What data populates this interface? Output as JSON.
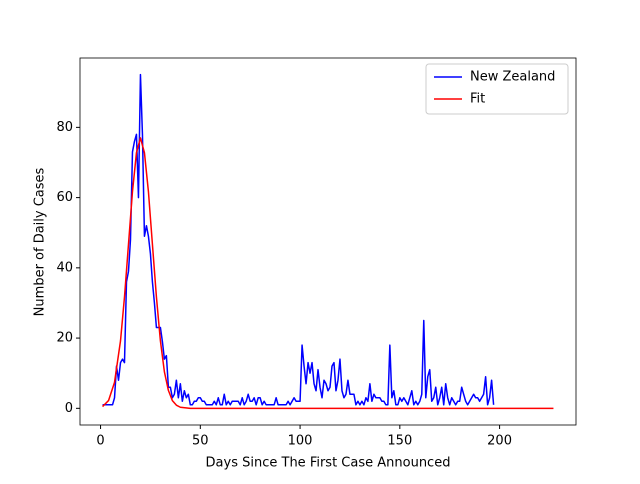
{
  "chart_data": {
    "type": "line",
    "xlabel": "Days Since The First Case Announced",
    "ylabel": "Number of Daily Cases",
    "xlim": [
      -10.3,
      238.3
    ],
    "ylim": [
      -4.75,
      99.75
    ],
    "xticks": [
      0,
      50,
      100,
      150,
      200
    ],
    "yticks": [
      0,
      20,
      40,
      60,
      80
    ],
    "grid": false,
    "legend": "upper right",
    "series": [
      {
        "name": "New Zealand",
        "color": "#0000ff",
        "x": [
          1,
          2,
          3,
          4,
          5,
          6,
          7,
          8,
          9,
          10,
          11,
          12,
          13,
          14,
          15,
          16,
          17,
          18,
          19,
          20,
          21,
          22,
          23,
          24,
          25,
          26,
          27,
          28,
          29,
          30,
          31,
          32,
          33,
          34,
          35,
          36,
          37,
          38,
          39,
          40,
          41,
          42,
          43,
          44,
          45,
          46,
          47,
          48,
          49,
          50,
          51,
          52,
          53,
          54,
          55,
          56,
          57,
          58,
          59,
          60,
          61,
          62,
          63,
          64,
          65,
          66,
          67,
          68,
          69,
          70,
          71,
          72,
          73,
          74,
          75,
          76,
          77,
          78,
          79,
          80,
          81,
          82,
          83,
          84,
          85,
          86,
          87,
          88,
          89,
          90,
          91,
          92,
          93,
          94,
          95,
          96,
          97,
          98,
          99,
          100,
          101,
          102,
          103,
          104,
          105,
          106,
          107,
          108,
          109,
          110,
          111,
          112,
          113,
          114,
          115,
          116,
          117,
          118,
          119,
          120,
          121,
          122,
          123,
          124,
          125,
          126,
          127,
          128,
          129,
          130,
          131,
          132,
          133,
          134,
          135,
          136,
          137,
          138,
          139,
          140,
          141,
          142,
          143,
          144,
          145,
          146,
          147,
          148,
          149,
          150,
          151,
          152,
          153,
          154,
          155,
          156,
          157,
          158,
          159,
          160,
          161,
          162,
          163,
          164,
          165,
          166,
          167,
          168,
          169,
          170,
          171,
          172,
          173,
          174,
          175,
          176,
          177,
          178,
          179,
          180,
          181,
          182,
          183,
          184,
          185,
          186,
          187,
          188,
          189,
          190,
          191,
          192,
          193,
          194,
          195,
          196,
          197
        ],
        "values": [
          1,
          1,
          1,
          1,
          1,
          1,
          3,
          12,
          8,
          13,
          14,
          13,
          36,
          39,
          48,
          73,
          76,
          78,
          60,
          95,
          78,
          49,
          52,
          49,
          44,
          36,
          30,
          23,
          23,
          23,
          19,
          14,
          15,
          6,
          6,
          3,
          4,
          8,
          3,
          7,
          2,
          5,
          3,
          4,
          1,
          1,
          2,
          2,
          3,
          3,
          2,
          2,
          1,
          1,
          1,
          1,
          2,
          1,
          3,
          1,
          1,
          4,
          1,
          2,
          1,
          2,
          2,
          2,
          2,
          1,
          3,
          1,
          2,
          4,
          2,
          2,
          3,
          1,
          3,
          3,
          1,
          2,
          1,
          1,
          1,
          1,
          1,
          3,
          1,
          1,
          1,
          1,
          1,
          2,
          1,
          2,
          3,
          2,
          2,
          2,
          18,
          12,
          7,
          13,
          10,
          13,
          7,
          5,
          11,
          6,
          3,
          8,
          7,
          5,
          6,
          12,
          13,
          5,
          8,
          14,
          5,
          3,
          4,
          8,
          4,
          4,
          4,
          1,
          2,
          1,
          2,
          1,
          3,
          2,
          7,
          2,
          4,
          3,
          3,
          3,
          2,
          2,
          1,
          1,
          18,
          3,
          5,
          1,
          1,
          3,
          2,
          3,
          2,
          1,
          3,
          5,
          1,
          2,
          1,
          2,
          4,
          25,
          3,
          9,
          11,
          2,
          3,
          6,
          1,
          3,
          6,
          1,
          7,
          3,
          1,
          3,
          2,
          1,
          2,
          2,
          6,
          4,
          2,
          1,
          2,
          3,
          4,
          3,
          3,
          2,
          3,
          4,
          9,
          1,
          3,
          8,
          1
        ]
      },
      {
        "name": "Fit",
        "color": "#ff0000",
        "x": [
          1,
          4,
          7,
          10,
          12,
          14,
          16,
          18,
          20,
          22,
          24,
          26,
          28,
          30,
          32,
          34,
          36,
          38,
          40,
          45,
          227
        ],
        "values": [
          0.5,
          2.2,
          7.4,
          19.2,
          31.7,
          46.7,
          61.7,
          72.8,
          77,
          72.8,
          61.7,
          46.7,
          31.7,
          19.2,
          10.4,
          5.1,
          2.2,
          0.9,
          0.3,
          0,
          0
        ]
      }
    ]
  }
}
